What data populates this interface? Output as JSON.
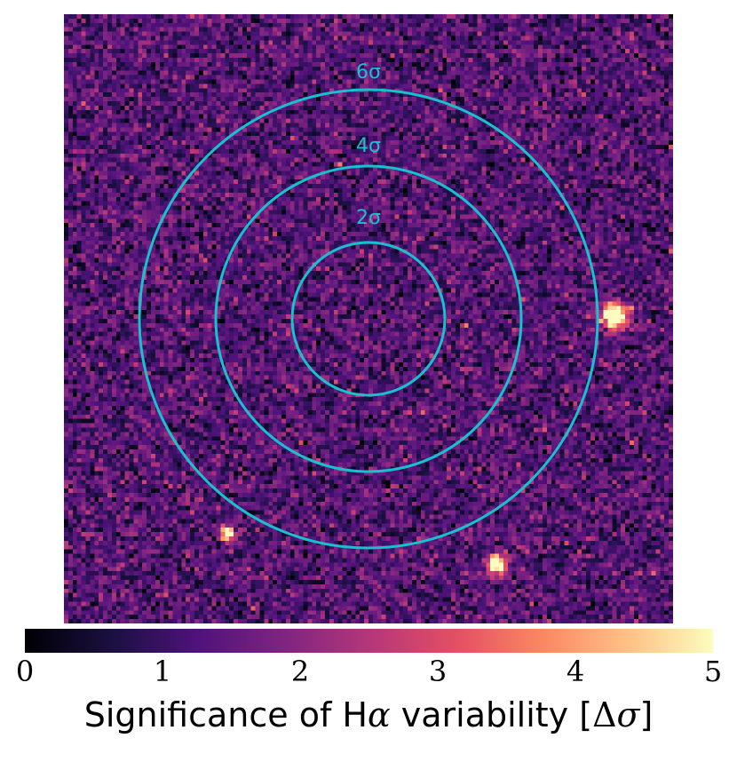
{
  "chart_data": {
    "type": "heatmap",
    "title": "",
    "colormap": "magma",
    "colorbar": {
      "range": [
        0,
        5
      ],
      "ticks": [
        "0",
        "1",
        "2",
        "3",
        "4",
        "5"
      ],
      "label_prefix": "Significance of H",
      "label_alpha": "α",
      "label_middle": " variability [",
      "label_delta": "Δ",
      "label_sigma": "σ",
      "label_suffix": "]"
    },
    "contours": [
      {
        "label": "2σ",
        "level_sigma": 2,
        "color": "#17c1cf"
      },
      {
        "label": "4σ",
        "level_sigma": 4,
        "color": "#17c1cf"
      },
      {
        "label": "6σ",
        "level_sigma": 6,
        "color": "#17c1cf"
      }
    ],
    "background_level_typical": 1.3,
    "bright_sources": [
      {
        "name": "source-right",
        "peak_significance": 5
      },
      {
        "name": "source-bottom-center",
        "peak_significance": 5
      },
      {
        "name": "source-bottom-left",
        "peak_significance": 4.5
      }
    ]
  },
  "colors": {
    "contour": "#17c1cf"
  }
}
